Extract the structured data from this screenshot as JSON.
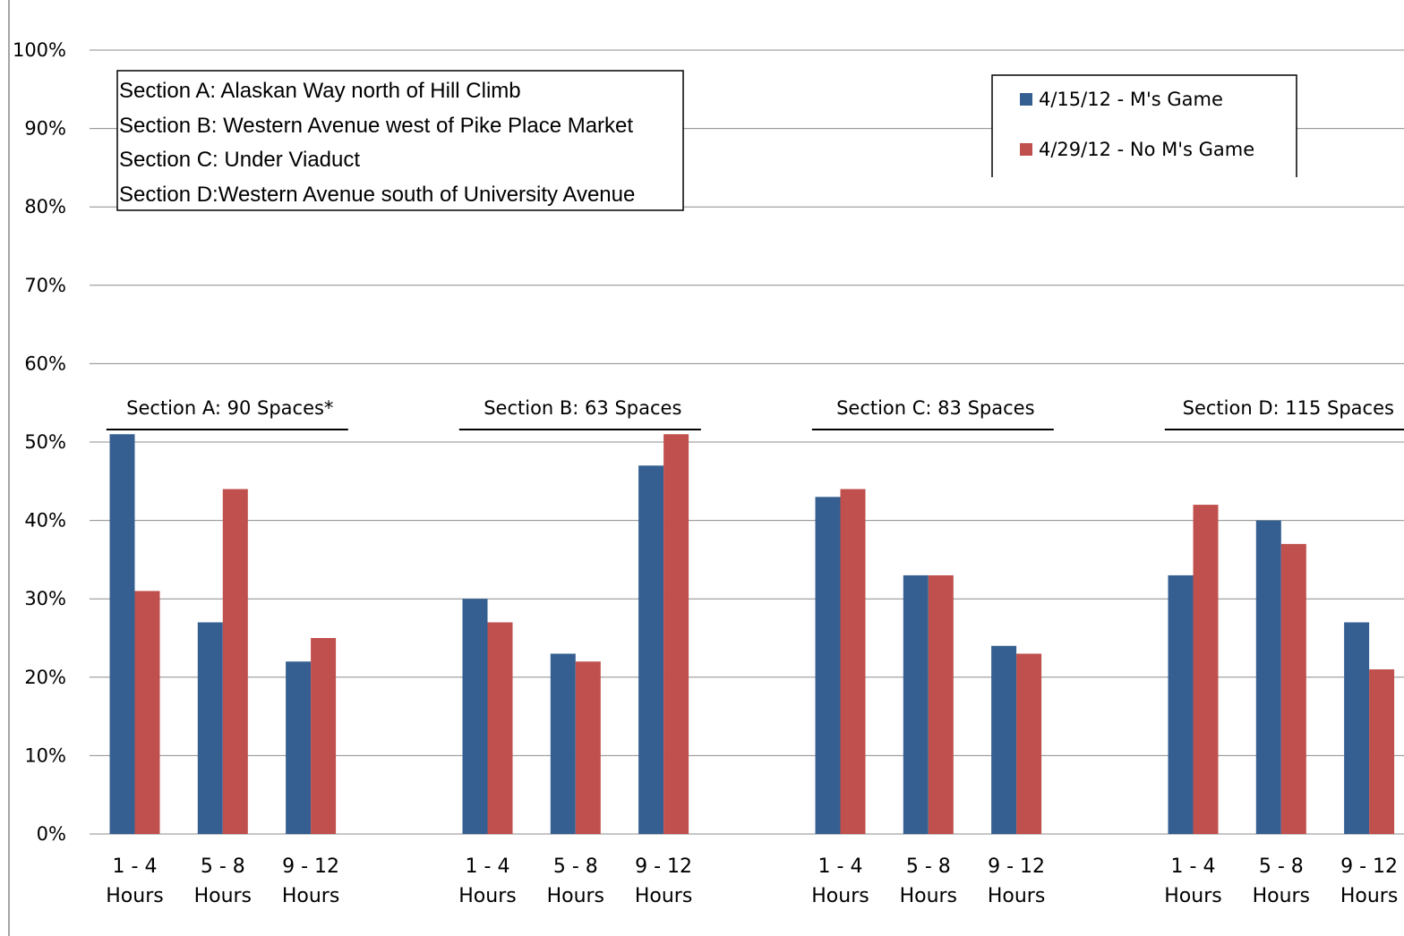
{
  "chart_data": {
    "type": "bar",
    "title": "",
    "xlabel": "",
    "ylabel": "",
    "ylim": [
      0,
      100
    ],
    "grid": true,
    "legend_position": "top-right",
    "y_ticks": [
      "0%",
      "10%",
      "20%",
      "30%",
      "40%",
      "50%",
      "60%",
      "70%",
      "80%",
      "90%",
      "100%"
    ],
    "groups": [
      {
        "label": "Section A: 90 Spaces*",
        "categories": [
          "1 - 4 Hours",
          "5 - 8 Hours",
          "9 - 12 Hours"
        ]
      },
      {
        "label": "Section B: 63 Spaces",
        "categories": [
          "1 - 4 Hours",
          "5 - 8 Hours",
          "9 - 12 Hours"
        ]
      },
      {
        "label": "Section C: 83 Spaces",
        "categories": [
          "1 - 4 Hours",
          "5 - 8 Hours",
          "9 - 12 Hours"
        ]
      },
      {
        "label": "Section D: 115 Spaces",
        "categories": [
          "1 - 4 Hours",
          "5 - 8 Hours",
          "9 - 12 Hours"
        ]
      }
    ],
    "category_lines": [
      [
        "1 - 4",
        "Hours"
      ],
      [
        "5 - 8",
        "Hours"
      ],
      [
        "9 - 12",
        "Hours"
      ]
    ],
    "series": [
      {
        "name": "4/15/12 - M's Game",
        "color": "#365f91",
        "values": [
          51,
          27,
          22,
          30,
          23,
          47,
          43,
          33,
          24,
          33,
          40,
          27
        ]
      },
      {
        "name": "4/29/12 - No M's Game",
        "color": "#c0504d",
        "values": [
          31,
          44,
          25,
          27,
          22,
          51,
          44,
          33,
          23,
          42,
          37,
          21
        ]
      }
    ],
    "annotations": [
      "Section A: Alaskan Way north of Hill Climb",
      "Section B: Western Avenue west of Pike Place Market",
      "Section C: Under Viaduct",
      "Section D:Western Avenue south of University Avenue"
    ]
  }
}
